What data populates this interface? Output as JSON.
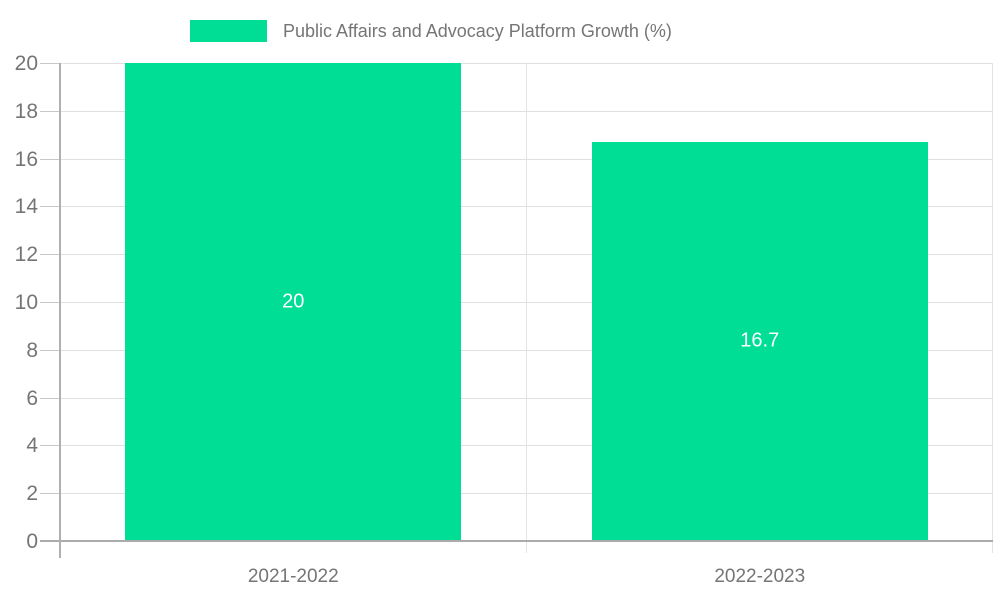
{
  "chart_data": {
    "type": "bar",
    "title": "Public Affairs and Advocacy Platform Growth (%)",
    "categories": [
      "2021-2022",
      "2022-2023"
    ],
    "series": [
      {
        "name": "Public Affairs and Advocacy Platform Growth (%)",
        "values": [
          20,
          16.7
        ]
      }
    ],
    "value_labels": [
      "20",
      "16.7"
    ],
    "xlabel": "",
    "ylabel": "",
    "ylim": [
      0,
      20
    ],
    "yticks": [
      0,
      2,
      4,
      6,
      8,
      10,
      12,
      14,
      16,
      18,
      20
    ],
    "grid": true,
    "legend_position": "top",
    "colors": {
      "bar": "#00DD95",
      "gridline": "#e0e0e0",
      "tick": "#c8c8c8",
      "axis": "#ababab",
      "text": "#757575",
      "value_label": "#ffffff",
      "background": "#ffffff"
    }
  }
}
